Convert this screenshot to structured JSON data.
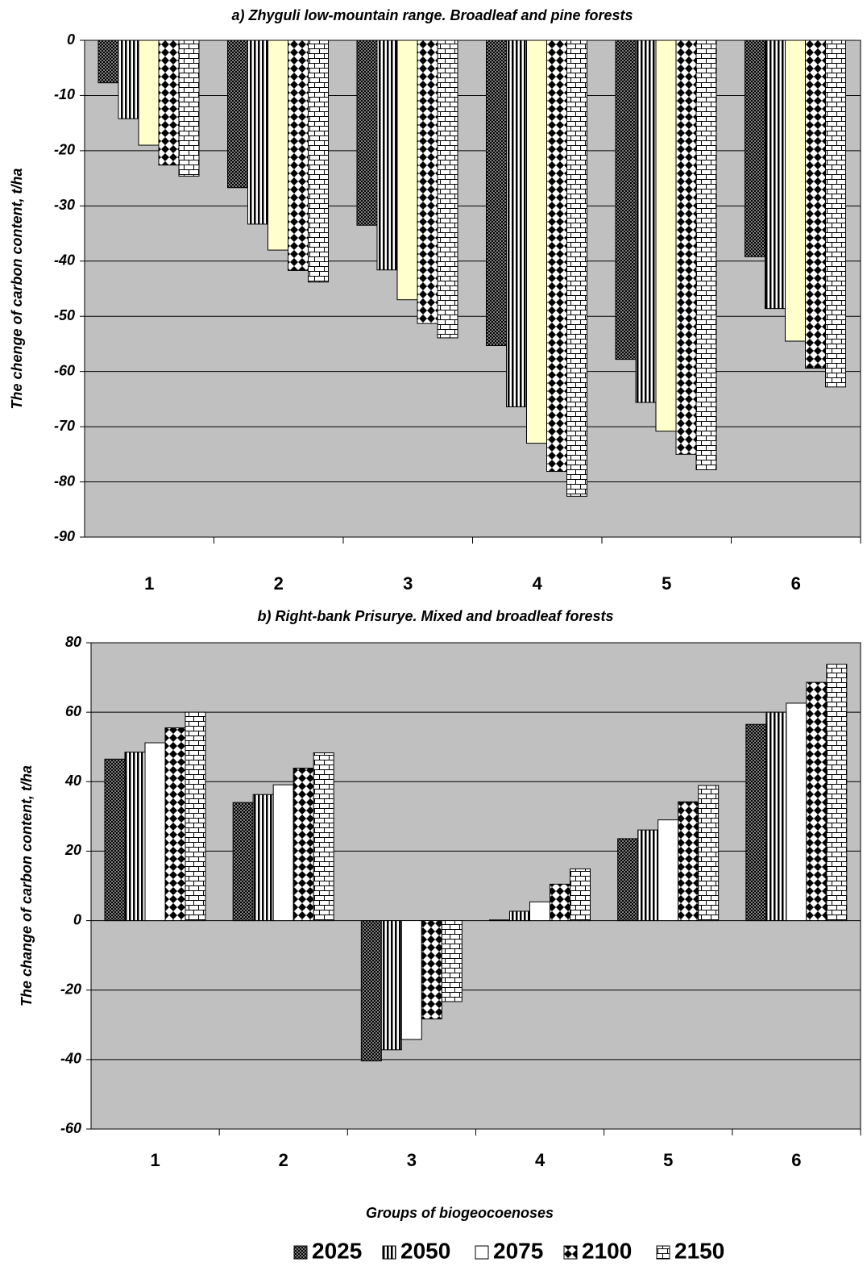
{
  "chart_data": [
    {
      "type": "bar",
      "title": "a) Zhyguli low-mountain range. Broadleaf and pine forests",
      "y_label": "The chenge of carbon content, t/ha",
      "categories": [
        "1",
        "2",
        "3",
        "4",
        "5",
        "6"
      ],
      "series": [
        {
          "color": "#7f7f7f",
          "values": [
            -7.7,
            -26.7,
            -33.5,
            -55.3,
            -57.8,
            -39.2
          ]
        },
        {
          "color": "#ffffff",
          "values": [
            -14.2,
            -33.3,
            -41.6,
            -66.4,
            -65.6,
            -48.6
          ]
        },
        {
          "color": "#ffffcc",
          "values": [
            -19,
            -38,
            -47,
            -73,
            -70.8,
            -54.5
          ]
        },
        {
          "color": "#ffffff",
          "values": [
            -22.6,
            -41.7,
            -51.3,
            -78.1,
            -75,
            -59.4
          ]
        },
        {
          "color": "#ffffff",
          "values": [
            -24.6,
            -43.8,
            -53.9,
            -82.6,
            -77.8,
            -62.8
          ]
        }
      ],
      "ylim": [
        -90,
        0
      ],
      "yticks": [
        0,
        -10,
        -20,
        -30,
        -40,
        -50,
        -60,
        -70,
        -80,
        -90
      ],
      "grid": true
    },
    {
      "type": "bar",
      "title": "b) Right-bank Prisurye. Mixed and broadleaf forests",
      "y_label": "The change of carbon content, t/ha",
      "x_label": "Groups of biogeocoenoses",
      "categories": [
        "1",
        "2",
        "3",
        "4",
        "5",
        "6"
      ],
      "series": [
        {
          "name": "2025",
          "color": "#7f7f7f",
          "values": [
            46.5,
            34,
            -40.4,
            0.2,
            23.6,
            56.5
          ]
        },
        {
          "name": "2050",
          "color": "#ffffff",
          "values": [
            48.5,
            36.3,
            -37.2,
            2.7,
            26.1,
            60
          ]
        },
        {
          "name": "2075",
          "color": "#ffffff",
          "values": [
            51.2,
            39.1,
            -34.2,
            5.4,
            29,
            62.6
          ]
        },
        {
          "name": "2100",
          "color": "#ffffff",
          "values": [
            55.5,
            43.9,
            -28.3,
            10.5,
            34.2,
            68.6
          ]
        },
        {
          "name": "2150",
          "color": "#ffffff",
          "values": [
            60,
            48.3,
            -23.3,
            14.9,
            38.9,
            73.8
          ]
        }
      ],
      "ylim": [
        -60,
        80
      ],
      "yticks": [
        80,
        60,
        40,
        20,
        0,
        -20,
        -40,
        -60
      ],
      "grid": true,
      "legend": "bottom"
    }
  ]
}
